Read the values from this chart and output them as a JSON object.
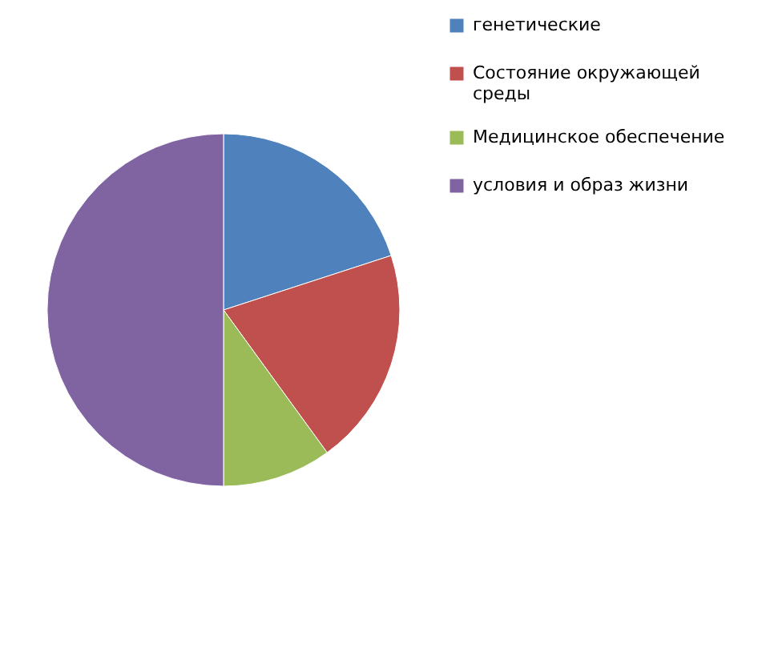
{
  "chart_data": {
    "type": "pie",
    "categories": [
      "генетические",
      "Состояние окружающей среды",
      "Медицинское обеспечение",
      "условия и образ жизни"
    ],
    "values": [
      20,
      20,
      10,
      50
    ],
    "colors": [
      "#4f81bd",
      "#c0504d",
      "#9bbb59",
      "#8064a2"
    ],
    "legend": "right"
  }
}
